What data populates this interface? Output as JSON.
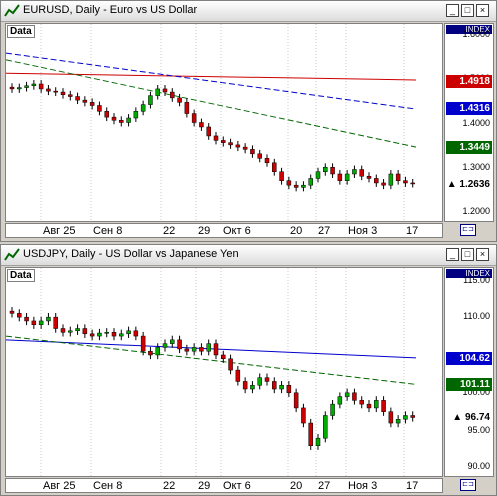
{
  "windows": [
    {
      "title": "EURUSD, Daily - Euro vs US Dollar",
      "index_label": "INDEX",
      "data_label": "Data",
      "x_labels": [
        "Авг 25",
        "Сен 8",
        "22",
        "29",
        "Окт 6",
        "20",
        "27",
        "Ноя 3",
        "17"
      ],
      "y_ticks": [
        "1.6000",
        "1.5000",
        "1.4000",
        "1.3000",
        "1.2000"
      ],
      "badges": [
        {
          "value": "1.4918",
          "color": "#cc0000"
        },
        {
          "value": "1.4316",
          "color": "#0000cc"
        },
        {
          "value": "1.3449",
          "color": "#006600"
        },
        {
          "value": "1.2636",
          "color": "last"
        }
      ]
    },
    {
      "title": "USDJPY, Daily - US Dollar vs Japanese Yen",
      "index_label": "INDEX",
      "data_label": "Data",
      "x_labels": [
        "Авг 25",
        "Сен 8",
        "22",
        "29",
        "Окт 6",
        "20",
        "27",
        "Ноя 3",
        "17"
      ],
      "y_ticks": [
        "115.00",
        "110.00",
        "100.00",
        "95.00",
        "90.00"
      ],
      "badges": [
        {
          "value": "104.62",
          "color": "#0000cc"
        },
        {
          "value": "101.11",
          "color": "#006600"
        },
        {
          "value": "96.74",
          "color": "last"
        }
      ]
    }
  ],
  "chart_data": [
    {
      "type": "candlestick",
      "title": "EURUSD, Daily - Euro vs US Dollar",
      "ylim": [
        1.18,
        1.62
      ],
      "close": [
        1.475,
        1.478,
        1.482,
        1.486,
        1.475,
        1.47,
        1.468,
        1.462,
        1.458,
        1.45,
        1.445,
        1.438,
        1.425,
        1.412,
        1.405,
        1.4,
        1.41,
        1.425,
        1.44,
        1.46,
        1.475,
        1.468,
        1.455,
        1.445,
        1.42,
        1.4,
        1.39,
        1.37,
        1.36,
        1.355,
        1.35,
        1.345,
        1.34,
        1.33,
        1.32,
        1.31,
        1.29,
        1.27,
        1.26,
        1.255,
        1.26,
        1.275,
        1.29,
        1.3,
        1.285,
        1.27,
        1.285,
        1.295,
        1.28,
        1.275,
        1.265,
        1.26,
        1.285,
        1.27,
        1.265,
        1.2636
      ],
      "series": [
        {
          "name": "1.4918",
          "color": "#cc0000",
          "values": [
            1.51,
            1.495
          ]
        },
        {
          "name": "1.4316",
          "color": "#0000cc",
          "values": [
            1.555,
            1.43
          ]
        },
        {
          "name": "1.3449",
          "color": "#006600",
          "values": [
            1.54,
            1.345
          ]
        }
      ]
    },
    {
      "type": "candlestick",
      "title": "USDJPY, Daily - US Dollar vs Japanese Yen",
      "ylim": [
        89,
        116.5
      ],
      "close": [
        110.5,
        110.0,
        109.5,
        109.0,
        109.5,
        110.0,
        108.5,
        108.0,
        108.2,
        108.5,
        107.8,
        107.5,
        107.9,
        108.0,
        107.5,
        107.8,
        108.2,
        107.5,
        105.5,
        105.0,
        106.0,
        106.5,
        107.0,
        105.8,
        105.5,
        106.0,
        105.5,
        106.5,
        105.0,
        104.5,
        103.0,
        101.5,
        100.5,
        101.0,
        102.0,
        101.5,
        100.5,
        101.0,
        100.0,
        98.0,
        96.0,
        93.0,
        94.0,
        97.0,
        98.5,
        99.5,
        100.0,
        99.0,
        98.5,
        98.0,
        99.0,
        97.5,
        96.0,
        96.5,
        97.0,
        96.74
      ],
      "series": [
        {
          "name": "104.62",
          "color": "#0000cc",
          "values": [
            107.0,
            104.62
          ]
        },
        {
          "name": "101.11",
          "color": "#006600",
          "values": [
            107.5,
            101.11
          ]
        }
      ]
    }
  ]
}
